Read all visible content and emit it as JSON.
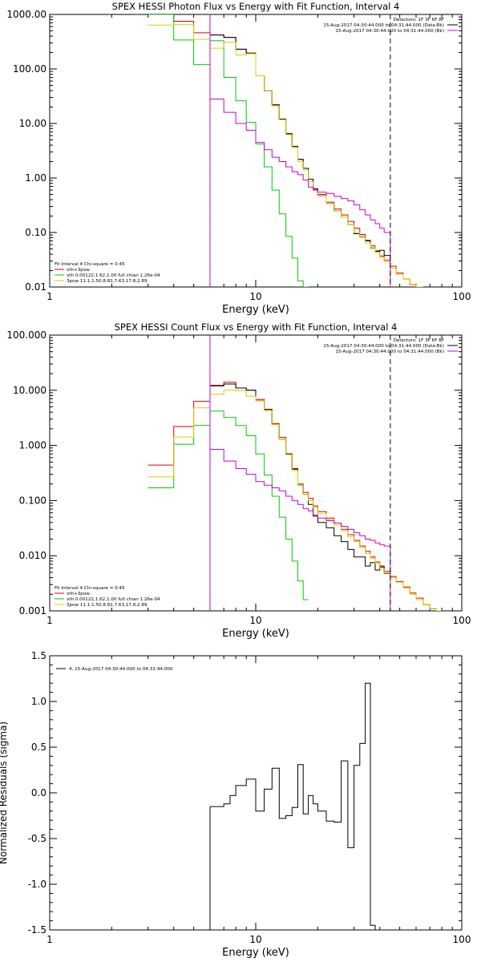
{
  "chart_data": [
    {
      "type": "line",
      "title": "SPEX HESSI Photon Flux vs Energy with Fit Function, Interval 4",
      "xlabel": "Energy (keV)",
      "ylabel": "",
      "xscale": "log",
      "yscale": "log",
      "xlim": [
        1,
        100
      ],
      "ylim": [
        0.01,
        1000
      ],
      "x_ticks": [
        {
          "v": 1,
          "label": "1"
        },
        {
          "v": 10,
          "label": "10"
        },
        {
          "v": 100,
          "label": "100"
        }
      ],
      "y_ticks": [
        {
          "v": 1000,
          "label": "1000.00"
        },
        {
          "v": 100,
          "label": "100.00"
        },
        {
          "v": 10,
          "label": "10.00"
        },
        {
          "v": 1,
          "label": "1.00"
        },
        {
          "v": 0.1,
          "label": "0.10"
        },
        {
          "v": 0.01,
          "label": "0.01"
        }
      ],
      "vlines": [
        {
          "x": 6.0,
          "style": "dotted",
          "color": "#000000"
        },
        {
          "x": 6.0,
          "style": "solid",
          "color": "#cc00cc"
        },
        {
          "x": 45.0,
          "style": "dashed",
          "color": "#000000"
        }
      ],
      "legend_top": [
        {
          "text": "Detectors: 1F 3F 6F 8F",
          "color": "#000000"
        },
        {
          "text": "15-Aug-2017 04:30:44.000 to 04:31:44.000 (Data-Bk)",
          "color": "#000000"
        },
        {
          "text": "15-Aug-2017 04:30:44.000 to 04:31:44.000 (Bk)",
          "color": "#cc00cc"
        }
      ],
      "legend_bottom": [
        {
          "text": "Fit Interval 4   Chi-square = 0.45",
          "color": "#000000"
        },
        {
          "text": "vth+3pow",
          "color": "#dd0000"
        },
        {
          "text": "vth 0.00122,1.62,1.00  full chian 1.26e-04",
          "color": "#00cc00"
        },
        {
          "text": "3pow 11.1,1.50,8.81,7.63,17.8,2.89",
          "color": "#ddcc00"
        }
      ],
      "series": [
        {
          "color": "#dd0000",
          "edges": [
            3,
            4,
            5,
            6,
            7,
            8,
            9,
            10,
            11,
            12,
            13,
            14,
            15,
            16,
            17,
            18,
            19,
            20,
            22,
            24,
            26,
            28,
            30,
            32,
            34,
            36,
            38,
            40,
            42,
            45,
            48,
            52,
            56,
            60
          ],
          "values": [
            1000,
            750,
            460,
            420,
            380,
            230,
            195,
            75,
            40,
            22,
            12,
            6.5,
            3.8,
            2.2,
            1.5,
            0.95,
            0.63,
            0.5,
            0.36,
            0.27,
            0.21,
            0.16,
            0.12,
            0.092,
            0.072,
            0.057,
            0.046,
            0.037,
            0.031,
            0.024,
            0.018,
            0.014,
            0.011
          ]
        },
        {
          "color": "#000000",
          "edges": [
            6,
            7,
            8,
            9,
            10,
            11,
            12,
            13,
            14,
            15,
            16,
            17,
            18,
            19,
            20,
            22,
            24,
            26,
            28,
            30,
            32,
            34,
            36,
            38,
            40,
            42,
            45
          ],
          "values": [
            420,
            380,
            230,
            195,
            75,
            40,
            22,
            12,
            6.5,
            3.8,
            2.2,
            1.5,
            0.95,
            0.63,
            0.47,
            0.34,
            0.25,
            0.19,
            0.14,
            0.095,
            0.083,
            0.07,
            0.052,
            0.045,
            0.047,
            0.038,
            0.027
          ]
        },
        {
          "color": "#00cc00",
          "edges": [
            3,
            4,
            5,
            6,
            7,
            8,
            9,
            10,
            11,
            12,
            13,
            14,
            15,
            16,
            17,
            18
          ],
          "values": [
            1000,
            340,
            120,
            330,
            70,
            26,
            10.5,
            4.2,
            1.6,
            0.6,
            0.22,
            0.085,
            0.034,
            0.013,
            0.01
          ]
        },
        {
          "color": "#ddcc00",
          "edges": [
            3,
            4,
            5,
            6,
            7,
            8,
            9,
            10,
            11,
            12,
            13,
            14,
            15,
            16,
            17,
            18,
            19,
            20,
            22,
            24,
            26,
            28,
            30,
            32,
            34,
            36,
            38,
            40,
            42,
            45,
            48,
            52,
            56,
            60,
            65
          ],
          "values": [
            640,
            650,
            350,
            240,
            310,
            180,
            190,
            75,
            40,
            21,
            11.7,
            6.2,
            3.6,
            2.0,
            1.4,
            0.85,
            0.6,
            0.47,
            0.34,
            0.25,
            0.19,
            0.14,
            0.1,
            0.082,
            0.064,
            0.053,
            0.043,
            0.035,
            0.029,
            0.022,
            0.017,
            0.014,
            0.011,
            0.01
          ]
        },
        {
          "color": "#cc00cc",
          "edges": [
            6,
            7,
            8,
            9,
            10,
            11,
            12,
            13,
            14,
            15,
            16,
            17,
            18,
            19,
            20,
            22,
            24,
            26,
            28,
            30,
            32,
            34,
            36,
            38,
            40,
            42,
            45
          ],
          "values": [
            28,
            16,
            10,
            7.5,
            4.5,
            3.3,
            2.4,
            2.0,
            1.6,
            1.3,
            1.15,
            0.92,
            0.68,
            0.6,
            0.55,
            0.52,
            0.46,
            0.42,
            0.38,
            0.32,
            0.26,
            0.21,
            0.17,
            0.145,
            0.12,
            0.1,
            0.09
          ]
        }
      ],
      "series_tails": [
        {
          "color": "#cc00cc",
          "x": 45,
          "from": 0.09,
          "to": 0.01
        }
      ]
    },
    {
      "type": "line",
      "title": "SPEX HESSI Count Flux vs Energy with Fit Function, Interval 4",
      "xlabel": "Energy (keV)",
      "ylabel": "",
      "xscale": "log",
      "yscale": "log",
      "xlim": [
        1,
        100
      ],
      "ylim": [
        0.001,
        100
      ],
      "x_ticks": [
        {
          "v": 1,
          "label": "1"
        },
        {
          "v": 10,
          "label": "10"
        },
        {
          "v": 100,
          "label": "100"
        }
      ],
      "y_ticks": [
        {
          "v": 100,
          "label": "100.000"
        },
        {
          "v": 10,
          "label": "10.000"
        },
        {
          "v": 1,
          "label": "1.000"
        },
        {
          "v": 0.1,
          "label": "0.100"
        },
        {
          "v": 0.01,
          "label": "0.010"
        },
        {
          "v": 0.001,
          "label": "0.001"
        }
      ],
      "vlines": [
        {
          "x": 6.0,
          "style": "dotted",
          "color": "#000000"
        },
        {
          "x": 6.0,
          "style": "solid",
          "color": "#cc00cc"
        },
        {
          "x": 45.0,
          "style": "dashed",
          "color": "#000000"
        }
      ],
      "legend_top": [
        {
          "text": "Detectors: 1F 3F 6F 8F",
          "color": "#000000"
        },
        {
          "text": "15-Aug-2017 04:30:44.000 to 04:31:44.000 (Data-Bk)",
          "color": "#000000"
        },
        {
          "text": "15-Aug-2017 04:30:44.000 to 04:31:44.000 (Bk)",
          "color": "#cc00cc"
        }
      ],
      "legend_bottom": [
        {
          "text": "Fit Interval 4   Chi-square = 0.45",
          "color": "#000000"
        },
        {
          "text": "vth+3pow",
          "color": "#dd0000"
        },
        {
          "text": "vth 0.00122,1.62,1.00  full chian 1.26e-04",
          "color": "#00cc00"
        },
        {
          "text": "3pow 11.1,1.50,8.81,7.63,17.8,2.89",
          "color": "#ddcc00"
        }
      ],
      "series": [
        {
          "color": "#dd0000",
          "edges": [
            3,
            4,
            5,
            6,
            7,
            8,
            9,
            10,
            11,
            12,
            13,
            14,
            15,
            16,
            17,
            18,
            19,
            20,
            22,
            24,
            26,
            28,
            30,
            32,
            34,
            36,
            38,
            40,
            42,
            45,
            48,
            52,
            56,
            60,
            65,
            70,
            75,
            80
          ],
          "values": [
            0.44,
            2.2,
            6.3,
            12.3,
            14,
            11,
            10,
            6.8,
            4.5,
            2.5,
            1.4,
            0.7,
            0.38,
            0.2,
            0.14,
            0.11,
            0.08,
            0.063,
            0.048,
            0.039,
            0.03,
            0.024,
            0.019,
            0.015,
            0.012,
            0.0095,
            0.0077,
            0.0062,
            0.0052,
            0.0042,
            0.0034,
            0.0027,
            0.0021,
            0.0017,
            0.0013,
            0.0011,
            0.001
          ]
        },
        {
          "color": "#000000",
          "edges": [
            6,
            7,
            8,
            9,
            10,
            11,
            12,
            13,
            14,
            15,
            16,
            17,
            18,
            19,
            20,
            22,
            24,
            26,
            28,
            30,
            32,
            34,
            36,
            38,
            40,
            42,
            45
          ],
          "values": [
            12,
            13,
            11,
            10,
            6.5,
            4.5,
            2.4,
            1.3,
            0.7,
            0.37,
            0.19,
            0.13,
            0.085,
            0.052,
            0.04,
            0.032,
            0.023,
            0.018,
            0.013,
            0.0095,
            0.0095,
            0.0065,
            0.0075,
            0.0055,
            0.0065,
            0.0048,
            0.0058
          ]
        },
        {
          "color": "#00cc00",
          "edges": [
            3,
            4,
            5,
            6,
            7,
            8,
            9,
            10,
            11,
            12,
            13,
            14,
            15,
            16,
            17,
            18
          ],
          "values": [
            0.17,
            1.05,
            2.3,
            4.2,
            3.2,
            2.3,
            1.5,
            0.7,
            0.29,
            0.12,
            0.05,
            0.02,
            0.008,
            0.0035,
            0.0016
          ]
        },
        {
          "color": "#ddcc00",
          "edges": [
            3,
            4,
            5,
            6,
            7,
            8,
            9,
            10,
            11,
            12,
            13,
            14,
            15,
            16,
            17,
            18,
            19,
            20,
            22,
            24,
            26,
            28,
            30,
            32,
            34,
            36,
            38,
            40,
            42,
            45,
            48,
            52,
            56,
            60,
            65,
            70,
            75,
            80
          ],
          "values": [
            0.27,
            1.42,
            4.8,
            8.5,
            10,
            9.8,
            7.8,
            6.5,
            4.3,
            2.4,
            1.3,
            0.68,
            0.35,
            0.19,
            0.13,
            0.1,
            0.075,
            0.058,
            0.045,
            0.036,
            0.028,
            0.022,
            0.018,
            0.014,
            0.011,
            0.009,
            0.0073,
            0.0059,
            0.0049,
            0.004,
            0.0033,
            0.0026,
            0.002,
            0.0016,
            0.0013,
            0.0011,
            0.001
          ]
        },
        {
          "color": "#cc00cc",
          "edges": [
            6,
            7,
            8,
            9,
            10,
            11,
            12,
            13,
            14,
            15,
            16,
            17,
            18,
            19,
            20,
            22,
            24,
            26,
            28,
            30,
            32,
            34,
            36,
            38,
            40,
            42,
            45
          ],
          "values": [
            0.85,
            0.52,
            0.38,
            0.3,
            0.22,
            0.19,
            0.17,
            0.15,
            0.12,
            0.1,
            0.085,
            0.072,
            0.065,
            0.055,
            0.048,
            0.043,
            0.039,
            0.034,
            0.03,
            0.026,
            0.023,
            0.02,
            0.019,
            0.017,
            0.016,
            0.015,
            0.014
          ]
        }
      ],
      "series_tails": [
        {
          "color": "#cc00cc",
          "x": 45,
          "from": 0.014,
          "to": 0.001
        }
      ]
    },
    {
      "type": "line",
      "title": "",
      "xlabel": "Energy (keV)",
      "ylabel": "Normalized Residuals (sigma)",
      "xscale": "log",
      "yscale": "linear",
      "xlim": [
        1,
        100
      ],
      "ylim": [
        -1.5,
        1.5
      ],
      "x_ticks": [
        {
          "v": 1,
          "label": "1"
        },
        {
          "v": 10,
          "label": "10"
        },
        {
          "v": 100,
          "label": "100"
        }
      ],
      "y_ticks": [
        {
          "v": 1.5,
          "label": "1.5"
        },
        {
          "v": 1.0,
          "label": "1.0"
        },
        {
          "v": 0.5,
          "label": "0.5"
        },
        {
          "v": 0.0,
          "label": "0.0"
        },
        {
          "v": -0.5,
          "label": "-0.5"
        },
        {
          "v": -1.0,
          "label": "-1.0"
        },
        {
          "v": -1.5,
          "label": "-1.5"
        }
      ],
      "legend_top_left": [
        {
          "text": "4, 15-Aug-2017 04:30:44.000 to 04:31:44.000",
          "color": "#000000"
        }
      ],
      "series": [
        {
          "color": "#000000",
          "edges": [
            6,
            7,
            7.5,
            8,
            9,
            10,
            11,
            12,
            13,
            14,
            15,
            16,
            17,
            18,
            19,
            20,
            22,
            24,
            26,
            28,
            30,
            32,
            34,
            36,
            38,
            40,
            42,
            45
          ],
          "values": [
            -0.15,
            -0.12,
            -0.03,
            0.08,
            0.15,
            -0.2,
            0.04,
            0.27,
            -0.28,
            -0.25,
            -0.16,
            0.31,
            -0.23,
            -0.03,
            -0.12,
            -0.2,
            -0.31,
            -0.32,
            0.35,
            -0.6,
            0.3,
            0.54,
            1.2,
            -1.45,
            -1.5,
            -1.5,
            -1.5
          ]
        }
      ],
      "series_heads": [
        {
          "color": "#000000",
          "x": 6,
          "from": -1.5,
          "to": -0.15
        }
      ]
    }
  ],
  "panels_layout_note": ""
}
